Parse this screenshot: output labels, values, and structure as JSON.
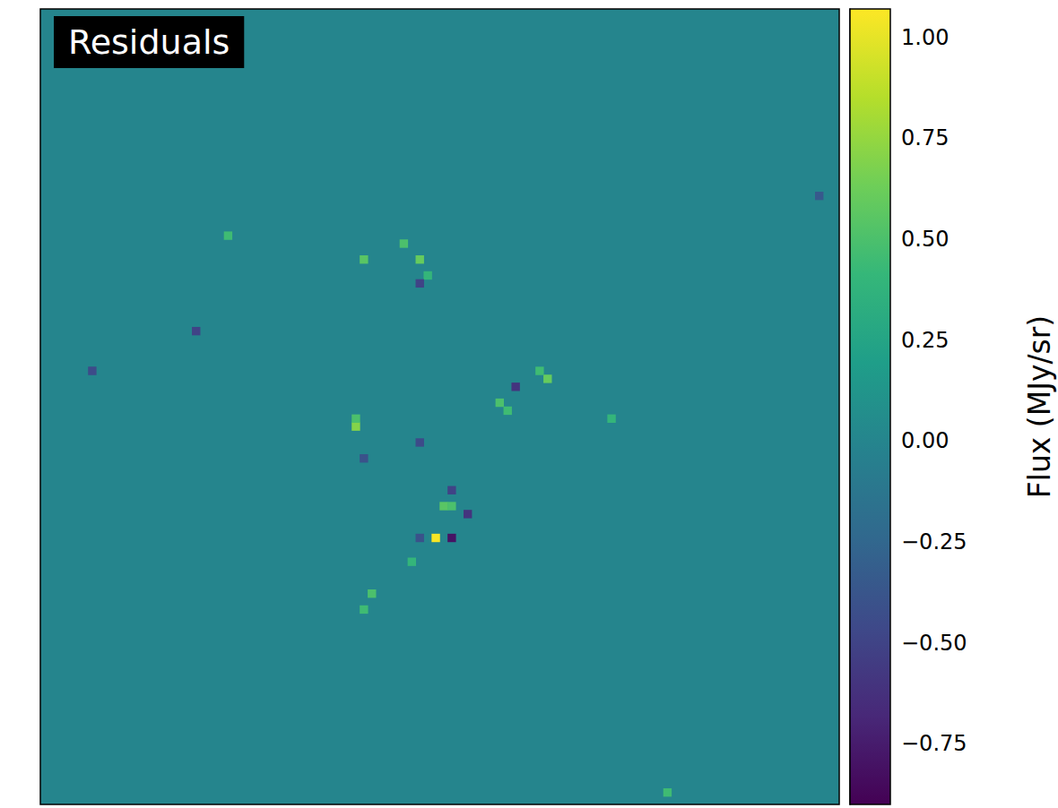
{
  "chart_data": {
    "type": "heatmap",
    "title": "Residuals",
    "color": "viridis",
    "tick_labels": false,
    "nx": 100,
    "ny": 100,
    "cells": [
      [
        49,
        66,
        1.05
      ],
      [
        51,
        66,
        -0.8
      ],
      [
        53,
        63,
        -0.6
      ],
      [
        50,
        62,
        0.55
      ],
      [
        51,
        62,
        0.5
      ],
      [
        47,
        66,
        -0.4
      ],
      [
        46,
        69,
        0.4
      ],
      [
        39,
        52,
        0.7
      ],
      [
        39,
        51,
        0.5
      ],
      [
        63,
        46,
        0.6
      ],
      [
        59,
        47,
        -0.6
      ],
      [
        57,
        49,
        0.5
      ],
      [
        58,
        50,
        0.45
      ],
      [
        62,
        45,
        0.45
      ],
      [
        40,
        31,
        0.55
      ],
      [
        45,
        29,
        0.5
      ],
      [
        47,
        31,
        0.6
      ],
      [
        48,
        33,
        0.4
      ],
      [
        47,
        34,
        -0.5
      ],
      [
        41,
        73,
        0.5
      ],
      [
        40,
        75,
        0.45
      ],
      [
        51,
        60,
        -0.5
      ],
      [
        47,
        54,
        -0.45
      ],
      [
        40,
        56,
        -0.4
      ],
      [
        19,
        40,
        -0.5
      ],
      [
        6,
        45,
        -0.45
      ],
      [
        97,
        23,
        -0.35
      ],
      [
        23,
        28,
        0.45
      ],
      [
        71,
        51,
        0.4
      ],
      [
        78,
        98,
        0.45
      ]
    ],
    "colorbar": {
      "label": "Flux (MJy/sr)",
      "range": [
        -0.9,
        1.07
      ],
      "ticks": [
        {
          "value": -0.75,
          "label": "−0.75"
        },
        {
          "value": -0.5,
          "label": "−0.50"
        },
        {
          "value": -0.25,
          "label": "−0.25"
        },
        {
          "value": 0,
          "label": "0.00"
        },
        0.25,
        {
          "value": 0.5,
          "label": "0.50"
        },
        0.75,
        {
          "value": 1,
          "label": "1.00"
        }
      ]
    }
  }
}
